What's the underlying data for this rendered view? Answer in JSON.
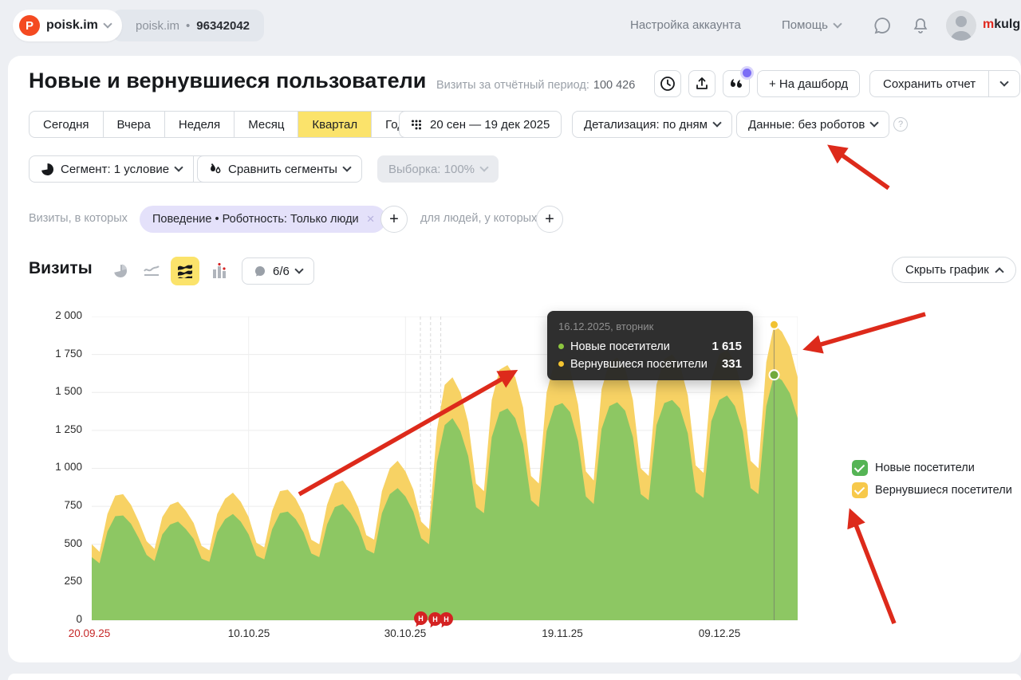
{
  "header": {
    "logo_text": "poisk.im",
    "counter_name": "poisk.im",
    "counter_separator": "•",
    "counter_id": "96342042",
    "account_settings": "Настройка аккаунта",
    "help": "Помощь",
    "user_prefix": "m",
    "user_rest": "kulgi"
  },
  "report": {
    "title": "Новые и вернувшиеся пользователи",
    "visits_label": "Визиты за отчётный период:",
    "visits_value": "100 426",
    "add_to_dashboard": "+ На дашборд",
    "save_report": "Сохранить отчет"
  },
  "period_tabs": [
    "Сегодня",
    "Вчера",
    "Неделя",
    "Месяц",
    "Квартал",
    "Год"
  ],
  "selected_period": "Квартал",
  "date_range": "20 сен — 19 дек 2025",
  "detail_select": "Детализация: по дням",
  "data_select": "Данные: без роботов",
  "segment_row": {
    "segment": "Сегмент: 1 условие",
    "compare": "Сравнить сегменты",
    "sample": "Выборка: 100%"
  },
  "filters": {
    "visits_in": "Визиты, в которых",
    "chip": "Поведение • Роботность: Только люди",
    "for_people": "для людей, у которых"
  },
  "metric": {
    "title": "Визиты",
    "annotations_count": "6/6",
    "hide_chart": "Скрыть график"
  },
  "tooltip": {
    "date": "16.12.2025, вторник",
    "rows": [
      {
        "label": "Новые посетители",
        "value": "1 615"
      },
      {
        "label": "Вернувшиеся посетители",
        "value": "331"
      }
    ]
  },
  "legend": [
    {
      "label": "Новые посетители",
      "color": "#55b455"
    },
    {
      "label": "Вернувшиеся посетители",
      "color": "#f7c94b"
    }
  ],
  "colors": {
    "area_new": "#8dc763",
    "area_returning": "#f7d264",
    "dot_new": "#71a93c",
    "dot_returning": "#f1c232",
    "arrow_red": "#dd2a1b",
    "grid": "#ececec",
    "grid_vertical": "#efefef",
    "dashed": "#d9d9d9",
    "accent_yellow": "#fbe36b"
  },
  "chart_data": {
    "type": "area",
    "stacked": true,
    "title": "Визиты",
    "x_start": "20.09.2025",
    "x_end": "19.12.2025",
    "ylim": [
      0,
      2000
    ],
    "grid": true,
    "legend_position": "right",
    "y_ticks": [
      "2 000",
      "1 750",
      "1 500",
      "1 250",
      "1 000",
      "750",
      "500",
      "250",
      "0"
    ],
    "x_ticks": [
      {
        "label": "20.09.25",
        "day": 0,
        "weekend": true
      },
      {
        "label": "10.10.25",
        "day": 20,
        "weekend": false
      },
      {
        "label": "30.10.25",
        "day": 40,
        "weekend": false
      },
      {
        "label": "19.11.25",
        "day": 60,
        "weekend": false
      },
      {
        "label": "09.12.25",
        "day": 80,
        "weekend": false
      }
    ],
    "hover_index": 87,
    "hover_total": 1946,
    "hover_new": 1615,
    "dashed_days": [
      41.9,
      43.2,
      44.5
    ],
    "annotation_markers": {
      "labels": [
        "Н",
        "Н",
        "Н"
      ]
    },
    "series": [
      {
        "name": "Новые посетители",
        "color": "#8dc763",
        "values": [
          415,
          375,
          585,
          685,
          690,
          635,
          540,
          430,
          390,
          565,
          630,
          650,
          600,
          535,
          405,
          385,
          580,
          665,
          700,
          650,
          565,
          425,
          400,
          600,
          705,
          715,
          665,
          580,
          440,
          415,
          630,
          745,
          765,
          705,
          615,
          465,
          440,
          705,
          830,
          870,
          815,
          715,
          540,
          500,
          1040,
          1285,
          1330,
          1245,
          1080,
          745,
          705,
          1205,
          1370,
          1395,
          1330,
          1160,
          790,
          745,
          1245,
          1410,
          1430,
          1370,
          1180,
          815,
          765,
          1260,
          1410,
          1435,
          1380,
          1205,
          830,
          790,
          1285,
          1430,
          1450,
          1395,
          1230,
          845,
          805,
          1310,
          1450,
          1480,
          1410,
          1245,
          870,
          830,
          1410,
          1615,
          1580,
          1495,
          1330
        ]
      },
      {
        "name": "Вернувшиеся посетители",
        "color": "#f7d264",
        "values": [
          85,
          75,
          115,
          135,
          140,
          125,
          110,
          90,
          80,
          115,
          130,
          130,
          120,
          105,
          85,
          75,
          120,
          135,
          140,
          130,
          115,
          85,
          80,
          120,
          145,
          145,
          135,
          120,
          90,
          85,
          130,
          155,
          155,
          145,
          125,
          95,
          90,
          145,
          170,
          180,
          165,
          145,
          110,
          100,
          210,
          265,
          270,
          255,
          220,
          155,
          145,
          245,
          280,
          285,
          270,
          240,
          160,
          155,
          255,
          290,
          290,
          280,
          240,
          165,
          155,
          260,
          290,
          295,
          280,
          245,
          170,
          160,
          265,
          290,
          300,
          285,
          250,
          175,
          165,
          270,
          300,
          300,
          290,
          255,
          180,
          170,
          290,
          331,
          320,
          305,
          270
        ]
      }
    ]
  }
}
